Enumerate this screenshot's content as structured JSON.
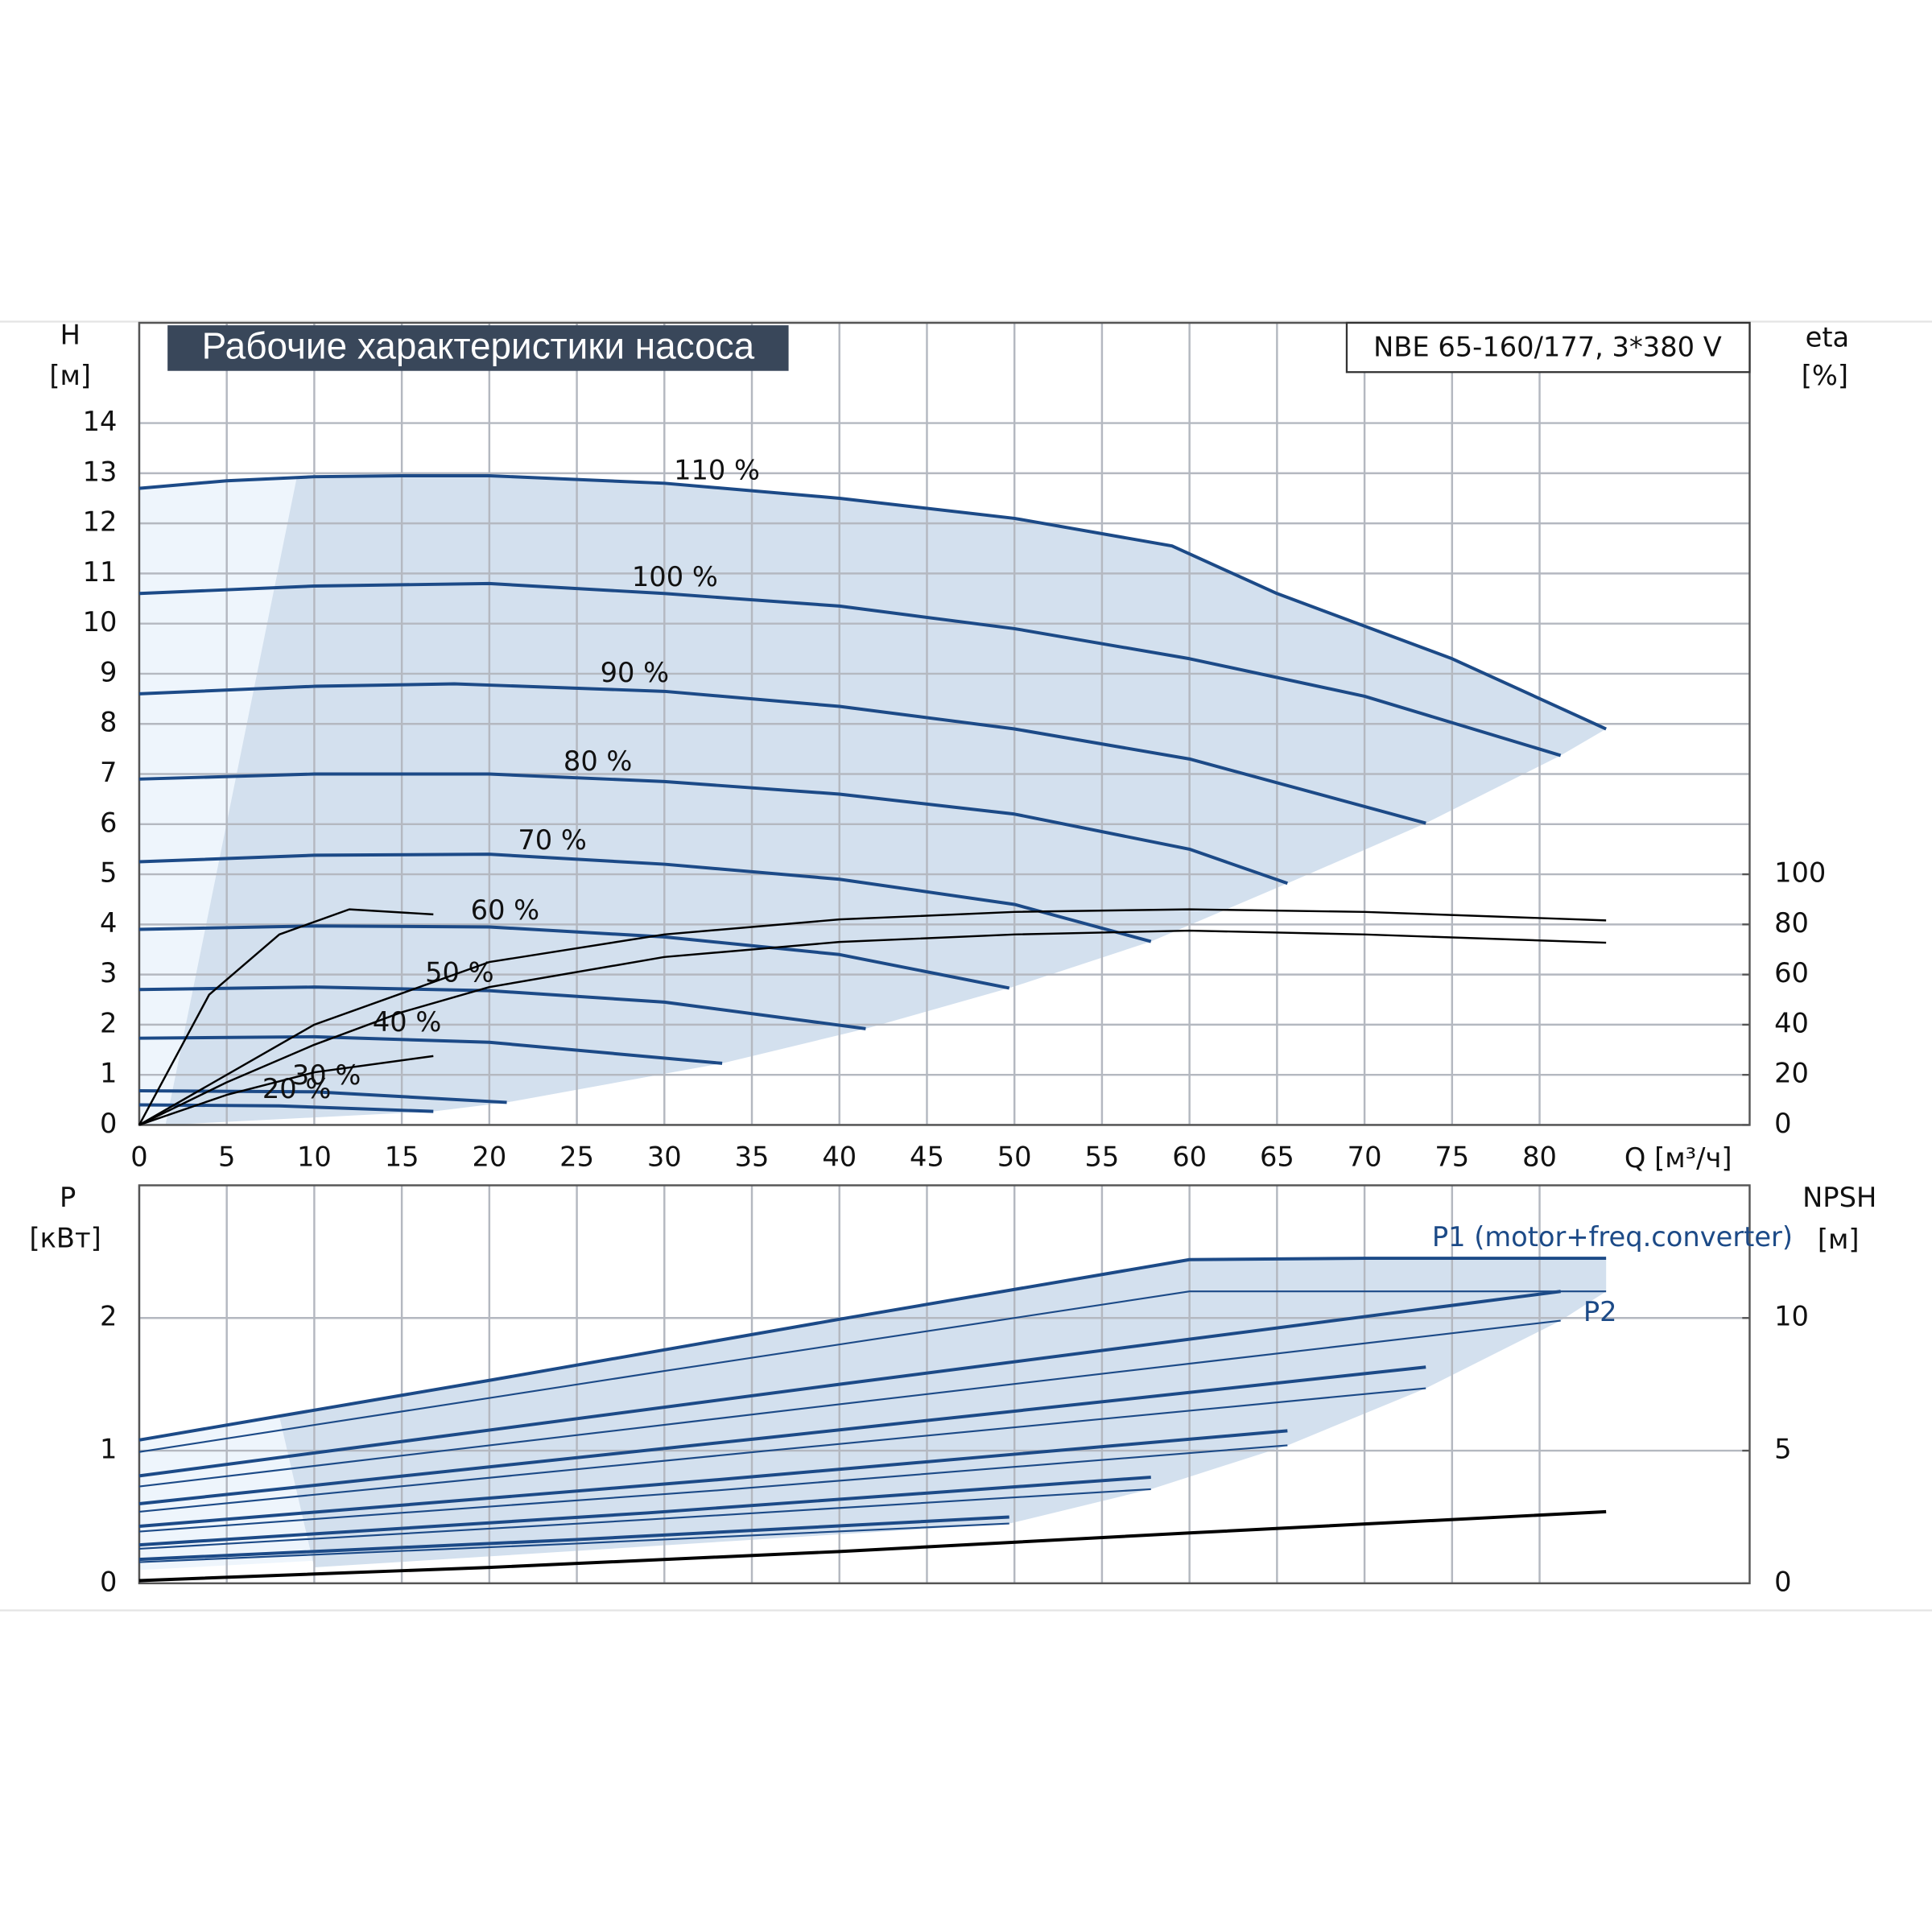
{
  "chart_data": [
    {
      "type": "line",
      "title": "Рабочие характеристики насоса",
      "subtitle": "NBE 65-160/177, 3*380 V",
      "xlabel": "Q [м³/ч]",
      "ylabel": "H",
      "yunit": "[м]",
      "y2label": "eta",
      "y2unit": "[%]",
      "xlim": [
        0,
        92
      ],
      "xticks": [
        0,
        5,
        10,
        15,
        20,
        25,
        30,
        35,
        40,
        45,
        50,
        55,
        60,
        65,
        70,
        75,
        80
      ],
      "ylim": [
        0,
        16
      ],
      "yticks": [
        0,
        1,
        2,
        3,
        4,
        5,
        6,
        7,
        8,
        9,
        10,
        11,
        12,
        13,
        14
      ],
      "y2lim": [
        0,
        320
      ],
      "y2ticks": [
        0,
        20,
        40,
        60,
        80,
        100
      ],
      "grid": true,
      "series": [
        {
          "name": "110 %",
          "color": "#1c4a87",
          "x": [
            0,
            5,
            10,
            15,
            20,
            30,
            40,
            50,
            59,
            65,
            75,
            83.8
          ],
          "values": [
            12.7,
            12.85,
            12.93,
            12.95,
            12.95,
            12.8,
            12.5,
            12.1,
            11.55,
            10.6,
            9.3,
            7.9
          ]
        },
        {
          "name": "100 %",
          "color": "#1c4a87",
          "x": [
            0,
            10,
            20,
            30,
            40,
            50,
            60,
            70,
            81.2
          ],
          "values": [
            10.6,
            10.75,
            10.8,
            10.6,
            10.35,
            9.9,
            9.3,
            8.55,
            7.37
          ]
        },
        {
          "name": "90 %",
          "color": "#1c4a87",
          "x": [
            0,
            10,
            18,
            30,
            40,
            50,
            60,
            73.5
          ],
          "values": [
            8.6,
            8.75,
            8.8,
            8.65,
            8.35,
            7.9,
            7.3,
            6.02
          ]
        },
        {
          "name": "80 %",
          "color": "#1c4a87",
          "x": [
            0,
            10,
            20,
            30,
            40,
            50,
            60,
            65.6
          ],
          "values": [
            6.9,
            7.0,
            7.0,
            6.85,
            6.6,
            6.2,
            5.5,
            4.82
          ]
        },
        {
          "name": "70 %",
          "color": "#1c4a87",
          "x": [
            0,
            10,
            20,
            30,
            40,
            50,
            57.8
          ],
          "values": [
            5.25,
            5.38,
            5.4,
            5.2,
            4.9,
            4.4,
            3.66
          ]
        },
        {
          "name": "60 %",
          "color": "#1c4a87",
          "x": [
            0,
            10,
            20,
            30,
            40,
            49.7
          ],
          "values": [
            3.9,
            3.97,
            3.95,
            3.75,
            3.4,
            2.73
          ]
        },
        {
          "name": "50 %",
          "color": "#1c4a87",
          "x": [
            0,
            10,
            20,
            30,
            41.5
          ],
          "values": [
            2.7,
            2.75,
            2.68,
            2.45,
            1.92
          ]
        },
        {
          "name": "40 %",
          "color": "#1c4a87",
          "x": [
            0,
            10,
            20,
            33.3
          ],
          "values": [
            1.73,
            1.76,
            1.65,
            1.23
          ]
        },
        {
          "name": "30 %",
          "color": "#1c4a87",
          "x": [
            0,
            10,
            21
          ],
          "values": [
            0.68,
            0.66,
            0.45
          ]
        },
        {
          "name": "20 %",
          "color": "#1c4a87",
          "x": [
            0,
            8,
            16.8
          ],
          "values": [
            0.4,
            0.38,
            0.27
          ]
        },
        {
          "color": "#000000",
          "axis": "y2",
          "x": [
            0,
            10,
            20,
            30,
            40,
            50,
            60,
            70,
            83.8
          ],
          "values": [
            0,
            40,
            65,
            76,
            82,
            85,
            86,
            85,
            81.6
          ]
        },
        {
          "color": "#000000",
          "axis": "y2",
          "x": [
            0,
            5,
            10,
            15,
            20,
            30,
            40,
            50,
            60,
            70,
            83.8
          ],
          "values": [
            0,
            17,
            32,
            45,
            55,
            67,
            73,
            76,
            77.5,
            76,
            72.7
          ]
        },
        {
          "color": "#000000",
          "axis": "y2",
          "x": [
            0,
            4,
            8,
            12,
            16.8
          ],
          "values": [
            0,
            52,
            76,
            86,
            84
          ]
        },
        {
          "color": "#000000",
          "axis": "y2",
          "x": [
            0,
            5,
            10,
            16.8
          ],
          "values": [
            0,
            12,
            21,
            27.5
          ]
        }
      ]
    },
    {
      "type": "line",
      "ylabel": "P",
      "yunit": "[кВт]",
      "y2label": "NPSH",
      "y2unit": "[м]",
      "xlim": [
        0,
        92
      ],
      "xticks": [
        0,
        5,
        10,
        15,
        20,
        25,
        30,
        35,
        40,
        45,
        50,
        55,
        60,
        65,
        70,
        75,
        80
      ],
      "ylim": [
        0,
        3
      ],
      "yticks": [
        0,
        1,
        2
      ],
      "y2lim": [
        0,
        15
      ],
      "y2ticks": [
        0,
        5,
        10
      ],
      "grid": true,
      "series": [
        {
          "name": "P1 (motor+freq.converter)",
          "color": "#1c4a87",
          "x": [
            0,
            8,
            20,
            40,
            60,
            70,
            83.8
          ],
          "values": [
            1.08,
            1.26,
            1.53,
            1.99,
            2.44,
            2.45,
            2.45
          ]
        },
        {
          "color": "#1c4a87",
          "x": [
            0,
            30,
            60,
            83.8
          ],
          "values": [
            0.99,
            1.6,
            2.2,
            2.2
          ]
        },
        {
          "color": "#1c4a87",
          "x": [
            0,
            40,
            81.2
          ],
          "values": [
            0.81,
            1.5,
            2.2
          ]
        },
        {
          "name": "P2",
          "color": "#1c4a87",
          "x": [
            0,
            40,
            81.2
          ],
          "values": [
            0.73,
            1.35,
            1.98
          ]
        },
        {
          "color": "#1c4a87",
          "x": [
            0,
            36,
            73.5
          ],
          "values": [
            0.6,
            1.1,
            1.63
          ]
        },
        {
          "color": "#1c4a87",
          "x": [
            0,
            36,
            73.5
          ],
          "values": [
            0.54,
            1.0,
            1.47
          ]
        },
        {
          "color": "#1c4a87",
          "x": [
            0,
            33,
            65.6
          ],
          "values": [
            0.43,
            0.78,
            1.15
          ]
        },
        {
          "color": "#1c4a87",
          "x": [
            0,
            33,
            65.6
          ],
          "values": [
            0.39,
            0.7,
            1.04
          ]
        },
        {
          "color": "#1c4a87",
          "x": [
            0,
            29,
            57.8
          ],
          "values": [
            0.29,
            0.53,
            0.8
          ]
        },
        {
          "color": "#1c4a87",
          "x": [
            0,
            29,
            57.8
          ],
          "values": [
            0.26,
            0.48,
            0.71
          ]
        },
        {
          "color": "#1c4a87",
          "x": [
            0,
            25,
            49.7
          ],
          "values": [
            0.18,
            0.33,
            0.5
          ]
        },
        {
          "color": "#1c4a87",
          "x": [
            0,
            25,
            49.7
          ],
          "values": [
            0.16,
            0.3,
            0.45
          ]
        },
        {
          "color": "#000000",
          "axis": "y2",
          "x": [
            0,
            20,
            40,
            60,
            83.8
          ],
          "values": [
            0.1,
            0.6,
            1.2,
            1.9,
            2.7
          ]
        }
      ]
    }
  ]
}
